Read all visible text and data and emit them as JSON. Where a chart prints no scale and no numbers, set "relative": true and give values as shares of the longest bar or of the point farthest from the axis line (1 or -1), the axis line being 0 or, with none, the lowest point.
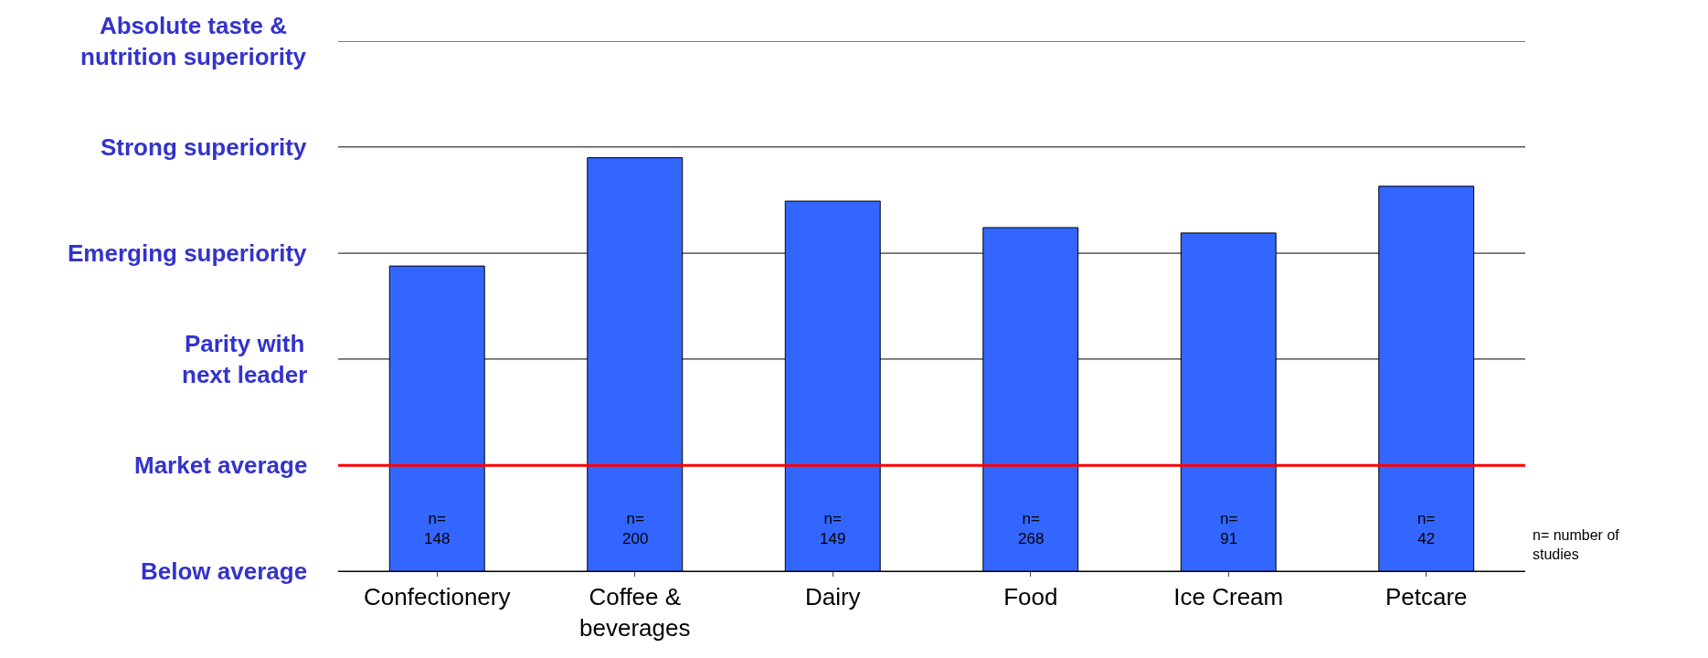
{
  "chart_data": {
    "type": "bar",
    "categories": [
      "Confectionery",
      "Coffee &\nbeverages",
      "Dairy",
      "Food",
      "Ice Cream",
      "Petcare"
    ],
    "values": [
      0.738,
      1,
      0.895,
      0.831,
      0.818,
      0.931
    ],
    "relative": true,
    "color": "#3366ff",
    "ref_lines": [
      {
        "axis": "y",
        "value": 0,
        "label": "Below average",
        "color": "#000000"
      },
      {
        "axis": "y",
        "value": 0.256,
        "label": "Market average",
        "color": "#ff0000"
      },
      {
        "axis": "y",
        "value": 0.513,
        "label": "Parity with\nnext leader",
        "color": "#000000"
      },
      {
        "axis": "y",
        "value": 0.769,
        "label": "Emerging superiority",
        "color": "#000000"
      },
      {
        "axis": "y",
        "value": 1.026,
        "label": "Strong superiority",
        "color": "#000000"
      },
      {
        "axis": "y",
        "value": 1.282,
        "label": "Absolute taste &\nnutrition superiority",
        "color": "#000000"
      }
    ],
    "annotations": [
      "n=\n148",
      "n=\n200",
      "n=\n149",
      "n=\n268",
      "n=\n91",
      "n=\n42",
      "n= number of\nstudies"
    ]
  }
}
